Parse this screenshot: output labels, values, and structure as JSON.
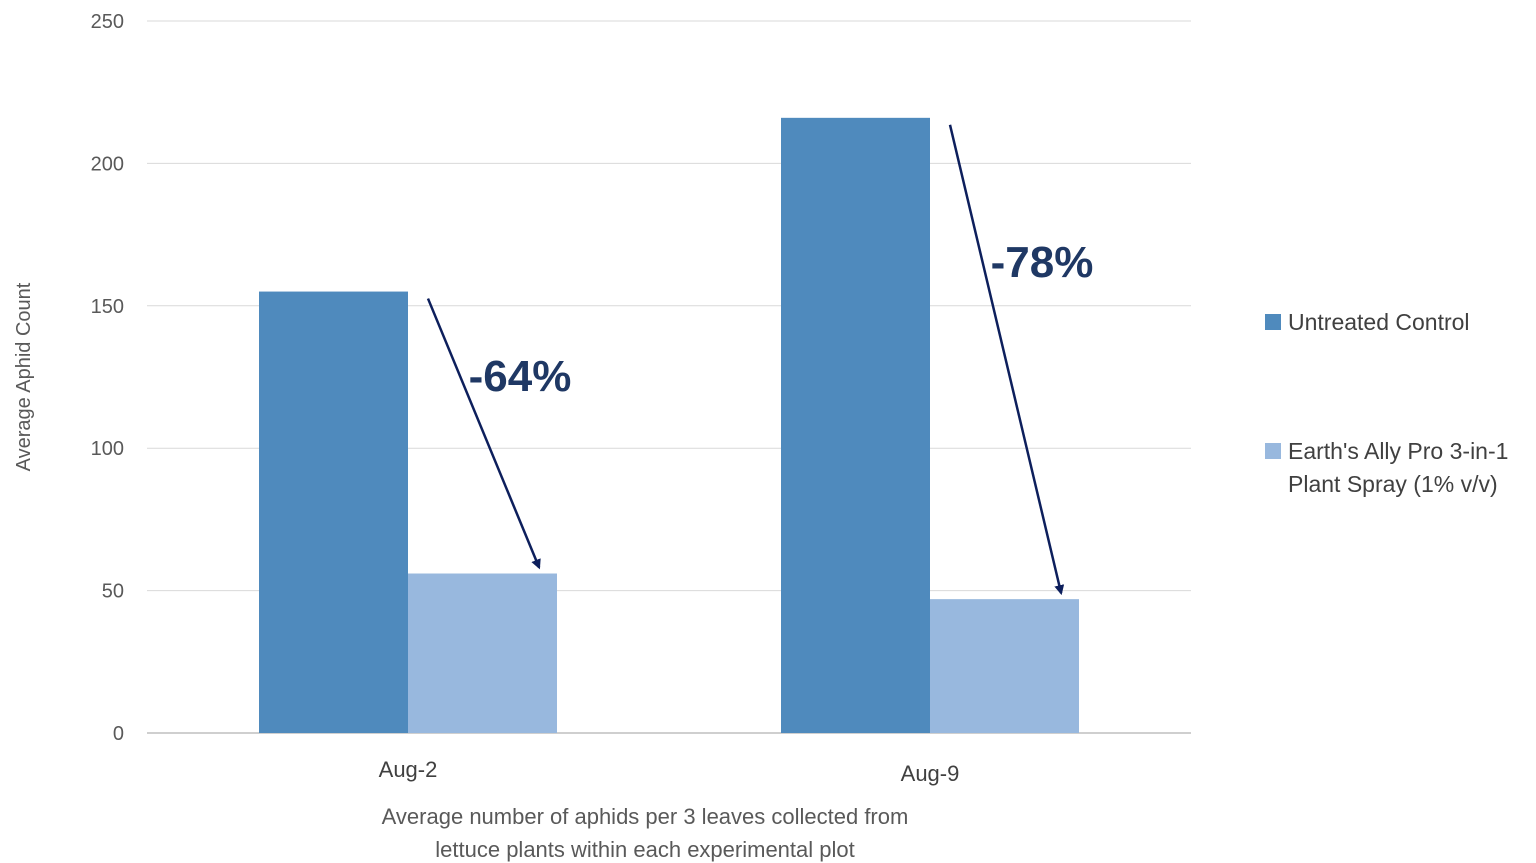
{
  "chart_data": {
    "type": "bar",
    "categories": [
      "Aug-2",
      "Aug-9"
    ],
    "series": [
      {
        "name": "Untreated Control",
        "values": [
          155,
          216
        ],
        "color": "#4f8abd"
      },
      {
        "name": "Earth's Ally Pro 3-in-1 Plant Spray (1% v/v)",
        "values": [
          56,
          47
        ],
        "color": "#98b8de"
      }
    ],
    "ylim": [
      0,
      250
    ],
    "yticks": [
      0,
      50,
      100,
      150,
      200,
      250
    ],
    "ylabel": "Average Aphid Count",
    "xlabel": "Average number of aphids per 3 leaves collected from lettuce plants within each experimental plot",
    "annotations": [
      "-64%",
      "-78%"
    ],
    "grid": true,
    "legend_position": "right"
  },
  "legend": {
    "items": [
      {
        "lines": [
          "Untreated Control"
        ]
      },
      {
        "lines": [
          "Earth's Ally Pro 3-in-1",
          "Plant Spray (1% v/v)"
        ]
      }
    ]
  },
  "xlabel_lines": [
    "Average number of aphids per 3 leaves collected from",
    "lettuce plants within each experimental plot"
  ]
}
